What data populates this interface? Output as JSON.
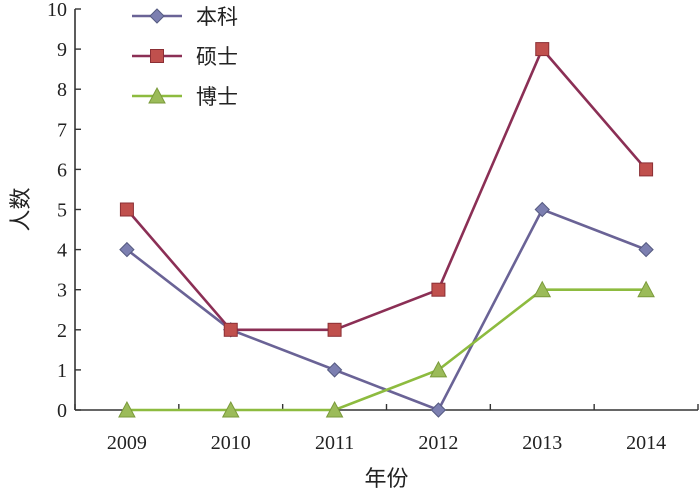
{
  "chart_data": {
    "type": "line",
    "title": "",
    "xlabel": "年份",
    "ylabel": "人数",
    "categories": [
      "2009",
      "2010",
      "2011",
      "2012",
      "2013",
      "2014"
    ],
    "ylim": [
      0,
      10
    ],
    "yticks": [
      "0",
      "1",
      "2",
      "3",
      "4",
      "5",
      "6",
      "7",
      "8",
      "9",
      "10"
    ],
    "grid": false,
    "legend_position": "top-left",
    "series": [
      {
        "name": "本科",
        "values": [
          4,
          2,
          1,
          0,
          5,
          4
        ],
        "color": "#6a6396",
        "marker": "diamond",
        "marker_color": "#7c7fb0"
      },
      {
        "name": "硕士",
        "values": [
          5,
          2,
          2,
          3,
          9,
          6
        ],
        "color": "#8b2f55",
        "marker": "square",
        "marker_color": "#c0504d"
      },
      {
        "name": "博士",
        "values": [
          0,
          0,
          0,
          1,
          3,
          3
        ],
        "color": "#8dbb3f",
        "marker": "triangle",
        "marker_color": "#9bbb59"
      }
    ]
  }
}
